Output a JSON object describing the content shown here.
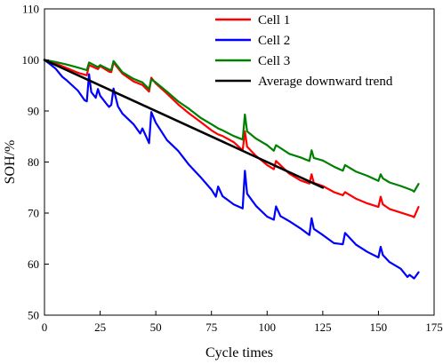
{
  "chart_data": {
    "type": "line",
    "title": "",
    "xlabel": "Cycle times",
    "ylabel": "SOH/%",
    "xlim": [
      0,
      175
    ],
    "ylim": [
      50,
      110
    ],
    "xticks": [
      0,
      25,
      50,
      75,
      100,
      125,
      150,
      175
    ],
    "yticks": [
      50,
      60,
      70,
      80,
      90,
      100,
      110
    ],
    "grid": false,
    "legend_position": "top-right",
    "series": [
      {
        "name": "Cell 1",
        "color": "#ff0000",
        "x": [
          0,
          5,
          10,
          15,
          19,
          20,
          24,
          25,
          29,
          30,
          31,
          35,
          40,
          44,
          47,
          48,
          50,
          55,
          60,
          65,
          70,
          75,
          78,
          80,
          85,
          89,
          90,
          91,
          95,
          100,
          103,
          104,
          110,
          115,
          119,
          120,
          121,
          125,
          130,
          134,
          135,
          140,
          145,
          150,
          151,
          152,
          155,
          160,
          165,
          166,
          168
        ],
        "values": [
          100,
          99.3,
          98.4,
          97.5,
          97.0,
          99.0,
          98.2,
          98.8,
          97.7,
          97.6,
          99.5,
          97.3,
          95.8,
          95.1,
          93.8,
          96.5,
          95.4,
          93.4,
          91.3,
          89.5,
          87.9,
          86.2,
          85.4,
          85.1,
          83.9,
          82.3,
          86.0,
          83.0,
          81.2,
          79.4,
          78.6,
          80.2,
          77.7,
          76.4,
          75.8,
          77.6,
          75.9,
          75.3,
          74.1,
          73.5,
          74.1,
          72.8,
          71.9,
          71.2,
          73.2,
          71.7,
          70.8,
          70.1,
          69.4,
          69.2,
          71.2
        ]
      },
      {
        "name": "Cell 2",
        "color": "#0000ff",
        "x": [
          0,
          3,
          5,
          8,
          10,
          15,
          18,
          19,
          20,
          21,
          23,
          24,
          25,
          28,
          29,
          30,
          31,
          33,
          35,
          40,
          43,
          44,
          47,
          48,
          50,
          55,
          60,
          65,
          70,
          75,
          77,
          78,
          80,
          85,
          89,
          90,
          91,
          95,
          100,
          103,
          104,
          106,
          110,
          115,
          119,
          120,
          121,
          125,
          130,
          134,
          135,
          140,
          145,
          150,
          151,
          152,
          155,
          160,
          163,
          164,
          166,
          168
        ],
        "values": [
          100,
          99.0,
          98.3,
          96.7,
          96.0,
          94.0,
          92.1,
          91.9,
          97.2,
          93.7,
          92.6,
          94.3,
          93.0,
          91.3,
          90.8,
          91.2,
          94.4,
          90.9,
          89.5,
          87.4,
          85.6,
          86.6,
          83.7,
          89.8,
          87.7,
          84.3,
          82.2,
          79.4,
          77.1,
          74.6,
          73.2,
          75.2,
          73.3,
          71.7,
          70.9,
          78.3,
          73.8,
          71.4,
          69.3,
          68.7,
          71.3,
          69.4,
          68.4,
          67.0,
          65.7,
          69.0,
          66.9,
          65.7,
          64.1,
          63.9,
          66.1,
          63.8,
          62.4,
          61.3,
          63.4,
          61.8,
          60.4,
          59.1,
          57.5,
          57.9,
          57.2,
          58.4
        ]
      },
      {
        "name": "Cell 3",
        "color": "#008000",
        "x": [
          0,
          5,
          10,
          15,
          19,
          20,
          24,
          25,
          29,
          30,
          31,
          35,
          40,
          44,
          47,
          48,
          50,
          55,
          60,
          65,
          70,
          75,
          78,
          80,
          85,
          89,
          90,
          91,
          95,
          100,
          103,
          104,
          110,
          115,
          119,
          120,
          121,
          125,
          130,
          134,
          135,
          140,
          145,
          150,
          151,
          152,
          155,
          160,
          165,
          166,
          168
        ],
        "values": [
          100,
          99.6,
          99.1,
          98.5,
          98.0,
          99.5,
          98.6,
          99.0,
          98.1,
          98.0,
          99.8,
          97.6,
          96.3,
          95.6,
          94.3,
          96.2,
          95.6,
          93.8,
          91.9,
          90.4,
          88.7,
          87.4,
          86.6,
          86.2,
          85.1,
          84.4,
          89.3,
          86.0,
          84.6,
          83.3,
          82.2,
          83.3,
          81.6,
          80.9,
          80.2,
          82.3,
          80.8,
          80.3,
          79.1,
          78.3,
          79.4,
          78.1,
          77.3,
          76.3,
          77.6,
          76.8,
          76.0,
          75.3,
          74.5,
          74.2,
          75.7
        ]
      },
      {
        "name": "Average downward trend",
        "color": "#000000",
        "x": [
          0,
          125
        ],
        "values": [
          100,
          75
        ]
      }
    ]
  }
}
